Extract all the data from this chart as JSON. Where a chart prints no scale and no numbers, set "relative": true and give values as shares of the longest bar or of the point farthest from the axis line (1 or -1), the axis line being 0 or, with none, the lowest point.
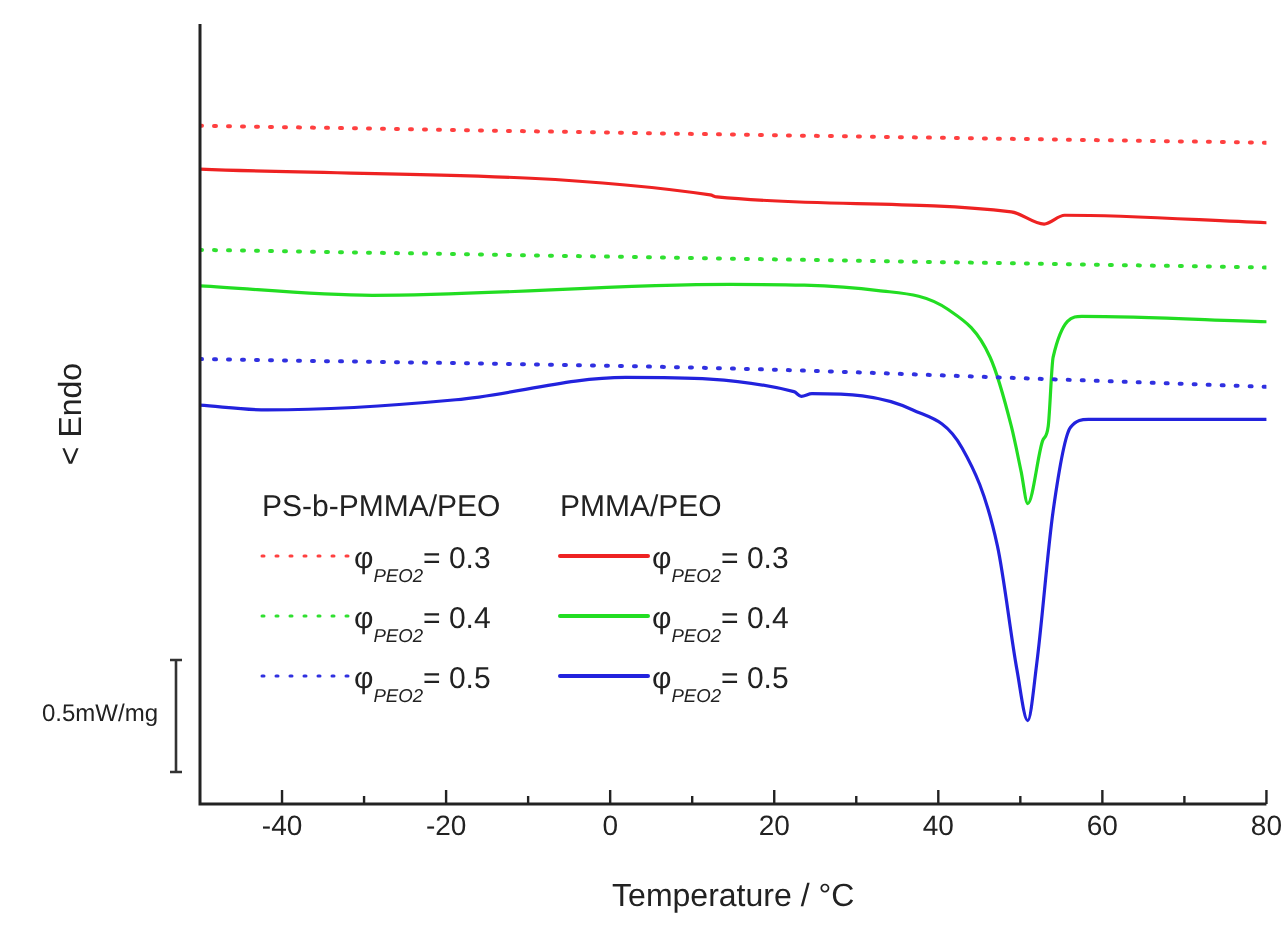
{
  "chart_data": {
    "type": "line",
    "relative": true,
    "xlabel": "Temperature / °C",
    "ylabel": "< Endo",
    "xlim": [
      -50,
      80
    ],
    "xticks": [
      -40,
      {
        "value": -30,
        "label": null
      },
      -20,
      {
        "value": -10,
        "label": null
      },
      0,
      {
        "value": 10,
        "label": null
      },
      20,
      {
        "value": 30,
        "label": null
      },
      40,
      {
        "value": 50,
        "label": null
      },
      60,
      {
        "value": 70,
        "label": null
      },
      80
    ],
    "legend": "bottom left",
    "grid": false,
    "marker": "none",
    "annotations": [
      "PS-b-PMMA/PEO",
      "PMMA/PEO",
      "0.5mW/mg"
    ],
    "series": [
      {
        "name": "φ$_{PEO2}$= 0.3",
        "color": "#ff4040",
        "line_style": "dotted",
        "x": [
          -50,
          15,
          80
        ],
        "values": [
          1.0,
          0.987,
          0.975
        ]
      },
      {
        "name": "φ$_{PEO2}$= 0.4",
        "color": "#30e030",
        "line_style": "dotted",
        "x": [
          -50,
          15,
          80
        ],
        "values": [
          0.817,
          0.804,
          0.791
        ]
      },
      {
        "name": "φ$_{PEO2}$= 0.5",
        "color": "#3030e0",
        "line_style": "dotted",
        "x": [
          -50,
          15,
          52,
          80
        ],
        "values": [
          0.656,
          0.642,
          0.627,
          0.615
        ]
      },
      {
        "name": "φ$_{PEO2}$= 0.3",
        "color": "#ee2222",
        "line_style": "solid",
        "x": [
          -50,
          12.2,
          13,
          48.9,
          52.9,
          55.4,
          80
        ],
        "values": [
          0.936,
          0.898,
          0.895,
          0.873,
          0.855,
          0.868,
          0.857
        ]
      },
      {
        "name": "φ$_{PEO2}$= 0.4",
        "color": "#22dd22",
        "line_style": "solid",
        "x": [
          -50,
          -29,
          14.6,
          32.7,
          41.2,
          46.3,
          48.9,
          50.1,
          50.9,
          52.7,
          53.4,
          54,
          57.5,
          80
        ],
        "values": [
          0.764,
          0.75,
          0.766,
          0.757,
          0.729,
          0.659,
          0.557,
          0.49,
          0.443,
          0.535,
          0.557,
          0.659,
          0.719,
          0.711
        ]
      },
      {
        "name": "φ$_{PEO2}$= 0.5",
        "color": "#2222dd",
        "line_style": "solid",
        "x": [
          -50,
          -41.8,
          -18.8,
          1.9,
          22.4,
          23.3,
          24.6,
          36.9,
          42.9,
          47.2,
          49.6,
          50.9,
          52,
          54,
          56.1,
          58.3,
          80
        ],
        "values": [
          0.588,
          0.581,
          0.596,
          0.629,
          0.608,
          0.601,
          0.605,
          0.581,
          0.525,
          0.381,
          0.197,
          0.123,
          0.207,
          0.432,
          0.555,
          0.567,
          0.567
        ]
      }
    ]
  }
}
